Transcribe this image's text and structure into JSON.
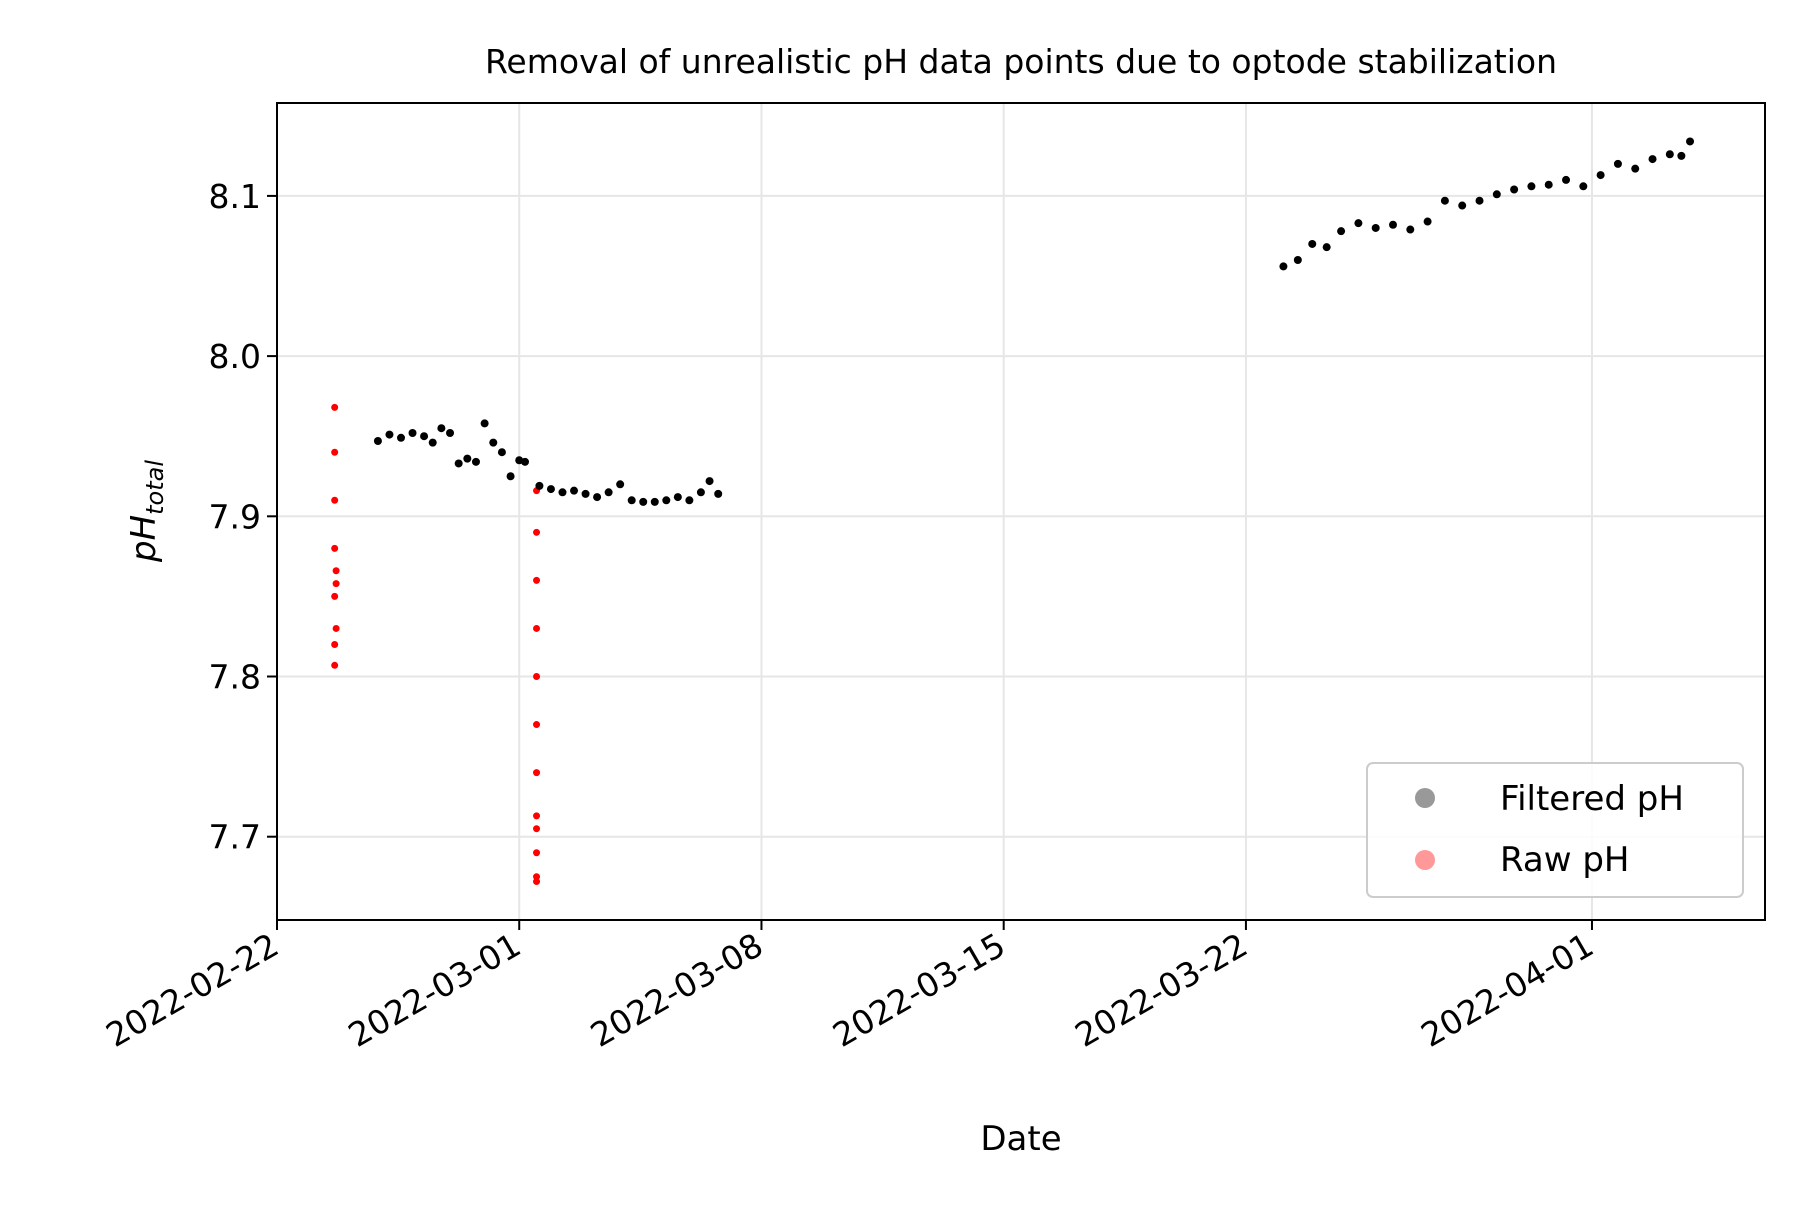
{
  "chart_data": {
    "type": "scatter",
    "title": "Removal of unrealistic pH data points due to optode stabilization",
    "xlabel": "Date",
    "ylabel_main": "pH",
    "ylabel_sub": "total",
    "xlim": [
      "2022-02-22",
      "2022-04-06"
    ],
    "ylim": [
      7.648,
      8.158
    ],
    "x_ticks": [
      "2022-02-22",
      "2022-03-01",
      "2022-03-08",
      "2022-03-15",
      "2022-03-22",
      "2022-04-01"
    ],
    "y_ticks": [
      7.7,
      7.8,
      7.9,
      8.0,
      8.1
    ],
    "y_tick_labels": [
      "7.7",
      "7.8",
      "7.9",
      "8.0",
      "8.1"
    ],
    "grid": true,
    "legend_position": "lower-right",
    "series": [
      {
        "name": "Filtered pH",
        "color": "#000000",
        "legend_color": "#999999",
        "points": [
          [
            "2022-02-24T22:00",
            7.947
          ],
          [
            "2022-02-25T06:00",
            7.951
          ],
          [
            "2022-02-25T14:00",
            7.949
          ],
          [
            "2022-02-25T22:00",
            7.952
          ],
          [
            "2022-02-26T06:00",
            7.95
          ],
          [
            "2022-02-26T12:00",
            7.946
          ],
          [
            "2022-02-26T18:00",
            7.955
          ],
          [
            "2022-02-27T00:00",
            7.952
          ],
          [
            "2022-02-27T06:00",
            7.933
          ],
          [
            "2022-02-27T12:00",
            7.936
          ],
          [
            "2022-02-27T18:00",
            7.934
          ],
          [
            "2022-02-28T00:00",
            7.958
          ],
          [
            "2022-02-28T06:00",
            7.946
          ],
          [
            "2022-02-28T12:00",
            7.94
          ],
          [
            "2022-02-28T18:00",
            7.925
          ],
          [
            "2022-03-01T00:00",
            7.935
          ],
          [
            "2022-03-01T04:00",
            7.934
          ],
          [
            "2022-03-01T14:00",
            7.919
          ],
          [
            "2022-03-01T22:00",
            7.917
          ],
          [
            "2022-03-02T06:00",
            7.915
          ],
          [
            "2022-03-02T14:00",
            7.916
          ],
          [
            "2022-03-02T22:00",
            7.914
          ],
          [
            "2022-03-03T06:00",
            7.912
          ],
          [
            "2022-03-03T14:00",
            7.915
          ],
          [
            "2022-03-03T22:00",
            7.92
          ],
          [
            "2022-03-04T06:00",
            7.91
          ],
          [
            "2022-03-04T14:00",
            7.909
          ],
          [
            "2022-03-04T22:00",
            7.909
          ],
          [
            "2022-03-05T06:00",
            7.91
          ],
          [
            "2022-03-05T14:00",
            7.912
          ],
          [
            "2022-03-05T22:00",
            7.91
          ],
          [
            "2022-03-06T06:00",
            7.915
          ],
          [
            "2022-03-06T12:00",
            7.922
          ],
          [
            "2022-03-06T18:00",
            7.914
          ],
          [
            "2022-03-23T02:00",
            8.056
          ],
          [
            "2022-03-23T12:00",
            8.06
          ],
          [
            "2022-03-23T22:00",
            8.07
          ],
          [
            "2022-03-24T08:00",
            8.068
          ],
          [
            "2022-03-24T18:00",
            8.078
          ],
          [
            "2022-03-25T06:00",
            8.083
          ],
          [
            "2022-03-25T18:00",
            8.08
          ],
          [
            "2022-03-26T06:00",
            8.082
          ],
          [
            "2022-03-26T18:00",
            8.079
          ],
          [
            "2022-03-27T06:00",
            8.084
          ],
          [
            "2022-03-27T18:00",
            8.097
          ],
          [
            "2022-03-28T06:00",
            8.094
          ],
          [
            "2022-03-28T18:00",
            8.097
          ],
          [
            "2022-03-29T06:00",
            8.101
          ],
          [
            "2022-03-29T18:00",
            8.104
          ],
          [
            "2022-03-30T06:00",
            8.106
          ],
          [
            "2022-03-30T18:00",
            8.107
          ],
          [
            "2022-03-31T06:00",
            8.11
          ],
          [
            "2022-03-31T18:00",
            8.106
          ],
          [
            "2022-04-01T06:00",
            8.113
          ],
          [
            "2022-04-01T18:00",
            8.12
          ],
          [
            "2022-04-02T06:00",
            8.117
          ],
          [
            "2022-04-02T18:00",
            8.123
          ],
          [
            "2022-04-03T06:00",
            8.126
          ],
          [
            "2022-04-03T14:00",
            8.125
          ],
          [
            "2022-04-03T20:00",
            8.134
          ]
        ]
      },
      {
        "name": "Raw pH",
        "color": "#ff0000",
        "legend_color": "#ff9999",
        "points": [
          [
            "2022-02-23T16:00",
            7.968
          ],
          [
            "2022-02-23T16:00",
            7.94
          ],
          [
            "2022-02-23T16:00",
            7.91
          ],
          [
            "2022-02-23T16:00",
            7.88
          ],
          [
            "2022-02-23T16:00",
            7.85
          ],
          [
            "2022-02-23T16:00",
            7.82
          ],
          [
            "2022-02-23T16:00",
            7.807
          ],
          [
            "2022-02-23T17:00",
            7.83
          ],
          [
            "2022-02-23T17:00",
            7.866
          ],
          [
            "2022-02-23T17:00",
            7.858
          ],
          [
            "2022-03-01T12:00",
            7.916
          ],
          [
            "2022-03-01T12:00",
            7.89
          ],
          [
            "2022-03-01T12:00",
            7.86
          ],
          [
            "2022-03-01T12:00",
            7.83
          ],
          [
            "2022-03-01T12:00",
            7.8
          ],
          [
            "2022-03-01T12:00",
            7.77
          ],
          [
            "2022-03-01T12:00",
            7.74
          ],
          [
            "2022-03-01T12:00",
            7.713
          ],
          [
            "2022-03-01T12:00",
            7.705
          ],
          [
            "2022-03-01T12:00",
            7.69
          ],
          [
            "2022-03-01T12:00",
            7.675
          ],
          [
            "2022-03-01T12:00",
            7.672
          ]
        ]
      }
    ]
  }
}
